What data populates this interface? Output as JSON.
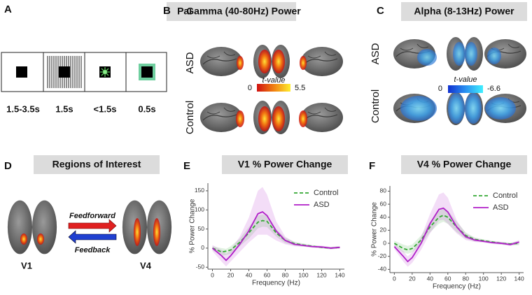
{
  "panels": {
    "A": {
      "letter": "A",
      "title": "Paradigm",
      "timings": [
        "1.5-3.5s",
        "1.5s",
        "<1.5s",
        "0.5s"
      ]
    },
    "B": {
      "letter": "B",
      "title": "Gamma (40-80Hz) Power",
      "rows": [
        "ASD",
        "Control"
      ],
      "colorbar": {
        "label": "t-value",
        "min": 0,
        "max": 5.5
      }
    },
    "C": {
      "letter": "C",
      "title": "Alpha (8-13Hz) Power",
      "rows": [
        "ASD",
        "Control"
      ],
      "colorbar": {
        "label": "t-value",
        "min": 0,
        "max": -6.6
      }
    },
    "D": {
      "letter": "D",
      "title": "Regions of Interest",
      "regions": [
        "V1",
        "V4"
      ],
      "arrows": [
        "Feedforward",
        "Feedback"
      ]
    },
    "E": {
      "letter": "E"
    },
    "F": {
      "letter": "F"
    }
  },
  "chart_data": [
    {
      "type": "line",
      "title": "V1 % Power Change",
      "x_label": "Frequency (Hz)",
      "y_label": "% Power Change",
      "x": [
        0,
        10,
        15,
        20,
        30,
        40,
        50,
        55,
        60,
        70,
        80,
        90,
        100,
        110,
        120,
        130,
        140
      ],
      "xlim": [
        -5,
        145
      ],
      "xticks": [
        0,
        20,
        40,
        60,
        80,
        100,
        120,
        140
      ],
      "ylim": [
        -55,
        170
      ],
      "yticks": [
        -50,
        0,
        50,
        100,
        150
      ],
      "legend": "upper right",
      "series": [
        {
          "name": "Control",
          "color": "#33a833",
          "dashed": true,
          "values": [
            0,
            -10,
            -8,
            -5,
            15,
            40,
            68,
            72,
            70,
            40,
            20,
            12,
            8,
            5,
            2,
            0,
            2
          ],
          "upper": [
            5,
            0,
            -2,
            5,
            25,
            55,
            85,
            88,
            85,
            50,
            27,
            17,
            12,
            8,
            5,
            3,
            5
          ],
          "lower": [
            -5,
            -20,
            -18,
            -15,
            5,
            25,
            52,
            56,
            55,
            30,
            13,
            7,
            4,
            2,
            -1,
            -3,
            -1
          ]
        },
        {
          "name": "ASD",
          "color": "#b01ec8",
          "dashed": false,
          "values": [
            0,
            -20,
            -32,
            -20,
            10,
            45,
            90,
            95,
            85,
            45,
            20,
            10,
            7,
            4,
            3,
            0,
            2
          ],
          "upper": [
            8,
            -5,
            -15,
            -5,
            30,
            80,
            150,
            160,
            140,
            70,
            30,
            15,
            10,
            7,
            6,
            3,
            5
          ],
          "lower": [
            -8,
            -35,
            -48,
            -35,
            -10,
            15,
            35,
            35,
            35,
            20,
            10,
            5,
            4,
            1,
            0,
            -3,
            -1
          ]
        }
      ]
    },
    {
      "type": "line",
      "title": "V4 % Power Change",
      "x_label": "Frequency (Hz)",
      "y_label": "% Power Change",
      "x": [
        0,
        10,
        15,
        20,
        30,
        40,
        50,
        55,
        60,
        70,
        80,
        90,
        100,
        110,
        120,
        130,
        140
      ],
      "xlim": [
        -5,
        145
      ],
      "xticks": [
        0,
        20,
        40,
        60,
        80,
        100,
        120,
        140
      ],
      "ylim": [
        -45,
        88
      ],
      "yticks": [
        -40,
        -20,
        0,
        20,
        40,
        60,
        80
      ],
      "legend": "upper right",
      "series": [
        {
          "name": "Control",
          "color": "#33a833",
          "dashed": true,
          "values": [
            0,
            -8,
            -10,
            -8,
            5,
            25,
            40,
            43,
            40,
            25,
            12,
            6,
            4,
            2,
            0,
            -1,
            0
          ],
          "upper": [
            4,
            -2,
            -4,
            -2,
            12,
            33,
            50,
            53,
            50,
            33,
            17,
            9,
            6,
            4,
            2,
            1,
            3
          ],
          "lower": [
            -4,
            -14,
            -16,
            -14,
            -2,
            17,
            30,
            33,
            30,
            17,
            7,
            3,
            2,
            0,
            -2,
            -3,
            -3
          ]
        },
        {
          "name": "ASD",
          "color": "#b01ec8",
          "dashed": false,
          "values": [
            -5,
            -20,
            -28,
            -22,
            0,
            30,
            52,
            54,
            48,
            25,
            10,
            5,
            3,
            1,
            0,
            -2,
            2
          ],
          "upper": [
            -1,
            -12,
            -20,
            -14,
            10,
            45,
            75,
            78,
            70,
            35,
            15,
            8,
            5,
            3,
            2,
            0,
            5
          ],
          "lower": [
            -9,
            -28,
            -36,
            -30,
            -10,
            15,
            35,
            36,
            30,
            15,
            5,
            2,
            1,
            -1,
            -2,
            -4,
            -1
          ]
        }
      ]
    }
  ]
}
